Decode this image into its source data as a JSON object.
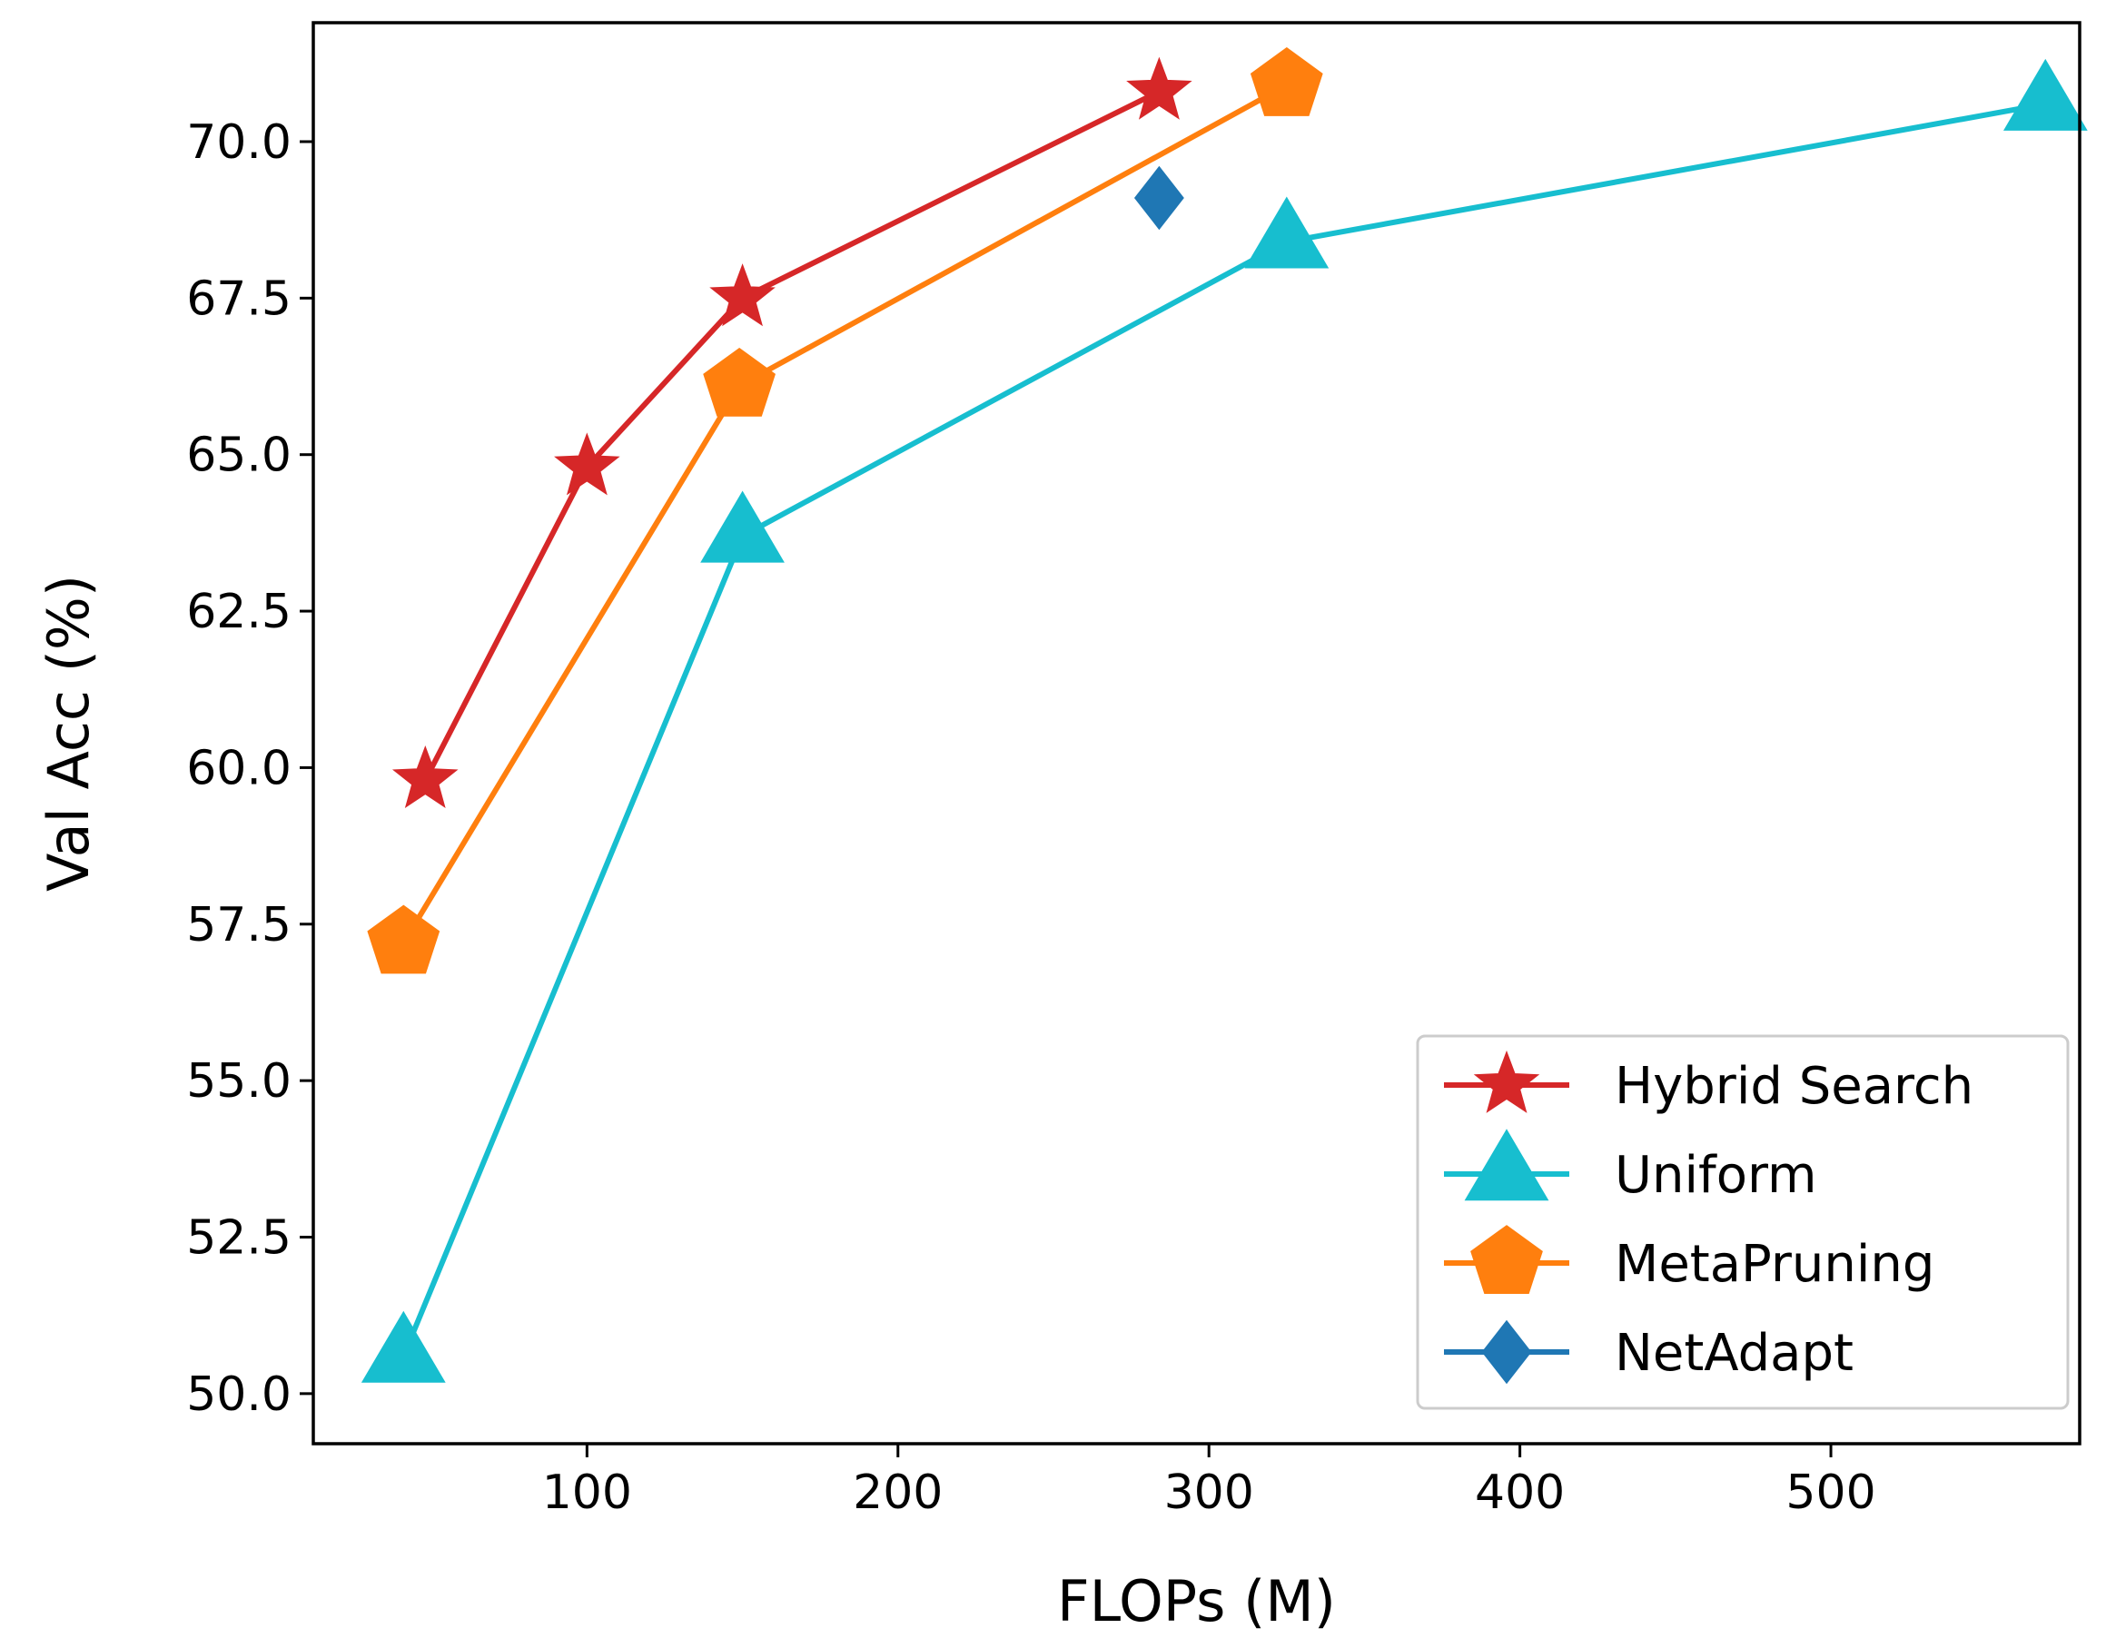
{
  "chart_data": {
    "type": "line",
    "title": "",
    "xlabel": "FLOPs (M)",
    "ylabel": "Val Acc (%)",
    "xlim": [
      12,
      580
    ],
    "ylim": [
      49.2,
      71.9
    ],
    "xticks": [
      100,
      200,
      300,
      400,
      500
    ],
    "xtick_labels": [
      "100",
      "200",
      "300",
      "400",
      "500"
    ],
    "yticks": [
      50.0,
      52.5,
      55.0,
      57.5,
      60.0,
      62.5,
      65.0,
      67.5,
      70.0
    ],
    "ytick_labels": [
      "50.0",
      "52.5",
      "55.0",
      "57.5",
      "60.0",
      "62.5",
      "65.0",
      "67.5",
      "70.0"
    ],
    "grid": false,
    "legend_position": "lower-right",
    "series": [
      {
        "name": "Hybrid Search",
        "color": "#d62728",
        "marker": "star",
        "x": [
          48,
          100,
          150,
          284
        ],
        "y": [
          59.8,
          64.8,
          67.5,
          70.8
        ]
      },
      {
        "name": "Uniform",
        "color": "#17becf",
        "marker": "triangle",
        "x": [
          41,
          150,
          325,
          569
        ],
        "y": [
          50.6,
          63.7,
          68.4,
          70.6
        ]
      },
      {
        "name": "MetaPruning",
        "color": "#ff7f0e",
        "marker": "pentagon",
        "x": [
          41,
          149,
          325
        ],
        "y": [
          57.2,
          66.1,
          70.9
        ]
      },
      {
        "name": "NetAdapt",
        "color": "#1f77b4",
        "marker": "diamond",
        "x": [
          284
        ],
        "y": [
          69.1
        ]
      }
    ]
  }
}
